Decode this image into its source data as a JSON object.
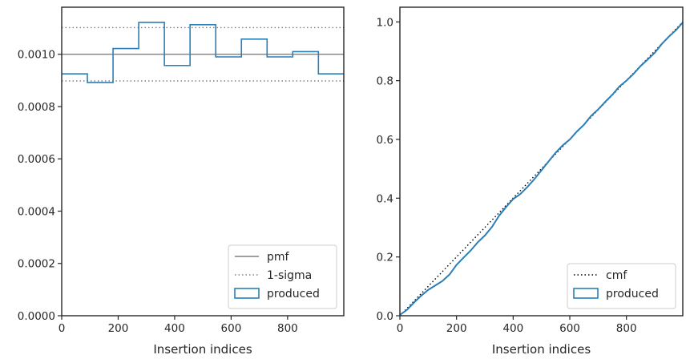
{
  "chart_data": [
    {
      "type": "histogram",
      "xlabel": "Insertion indices",
      "ylabel": "",
      "xlim": [
        0,
        999
      ],
      "ylim": [
        0,
        0.00118
      ],
      "x_ticks": [
        0,
        200,
        400,
        600,
        800
      ],
      "y_ticks": [
        0.0,
        0.0002,
        0.0004,
        0.0006,
        0.0008,
        0.001
      ],
      "x_tick_labels": [
        "0",
        "200",
        "400",
        "600",
        "800"
      ],
      "y_tick_labels": [
        "0.0000",
        "0.0002",
        "0.0004",
        "0.0006",
        "0.0008",
        "0.0010"
      ],
      "pmf": 0.001,
      "sigma_band": [
        0.000898,
        0.001102
      ],
      "bin_edges": [
        0,
        90.9,
        181.8,
        272.7,
        363.6,
        454.5,
        545.5,
        636.4,
        727.3,
        818.2,
        909.1,
        999
      ],
      "produced": [
        0.000925,
        0.000892,
        0.001022,
        0.001122,
        0.000957,
        0.001113,
        0.00099,
        0.001058,
        0.00099,
        0.00101,
        0.000925
      ],
      "legend": {
        "placement": "lower-right",
        "entries": [
          {
            "label": "pmf",
            "style": "solid",
            "color": "#808080"
          },
          {
            "label": "1-sigma",
            "style": "dotted",
            "color": "#808080"
          },
          {
            "label": "produced",
            "style": "box",
            "color": "#2a7fb8"
          }
        ]
      }
    },
    {
      "type": "line",
      "xlabel": "Insertion indices",
      "ylabel": "",
      "xlim": [
        0,
        999
      ],
      "ylim": [
        0,
        1.05
      ],
      "x_ticks": [
        0,
        200,
        400,
        600,
        800
      ],
      "y_ticks": [
        0.0,
        0.2,
        0.4,
        0.6,
        0.8,
        1.0
      ],
      "x_tick_labels": [
        "0",
        "200",
        "400",
        "600",
        "800"
      ],
      "y_tick_labels": [
        "0.0",
        "0.2",
        "0.4",
        "0.6",
        "0.8",
        "1.0"
      ],
      "cmf": {
        "x": [
          0,
          999
        ],
        "y": [
          0,
          1.0
        ]
      },
      "produced": {
        "x": [
          0,
          25,
          50,
          75,
          100,
          125,
          150,
          175,
          200,
          225,
          250,
          275,
          300,
          325,
          350,
          375,
          400,
          425,
          450,
          475,
          500,
          525,
          550,
          575,
          600,
          625,
          650,
          675,
          700,
          725,
          750,
          775,
          800,
          825,
          850,
          875,
          900,
          925,
          950,
          975,
          999
        ],
        "y": [
          0.003,
          0.02,
          0.045,
          0.068,
          0.088,
          0.103,
          0.118,
          0.14,
          0.173,
          0.198,
          0.222,
          0.25,
          0.273,
          0.302,
          0.34,
          0.37,
          0.397,
          0.414,
          0.438,
          0.465,
          0.495,
          0.525,
          0.555,
          0.58,
          0.6,
          0.627,
          0.65,
          0.68,
          0.702,
          0.728,
          0.752,
          0.78,
          0.8,
          0.823,
          0.85,
          0.872,
          0.895,
          0.925,
          0.95,
          0.972,
          0.998
        ]
      },
      "legend": {
        "placement": "lower-right",
        "entries": [
          {
            "label": "cmf",
            "style": "dotted",
            "color": "#000000"
          },
          {
            "label": "produced",
            "style": "box",
            "color": "#2a7fb8"
          }
        ]
      }
    }
  ],
  "colors": {
    "produced": "#2a7fb8",
    "reference": "#808080",
    "cmf": "#000000",
    "axes": "#262626"
  }
}
